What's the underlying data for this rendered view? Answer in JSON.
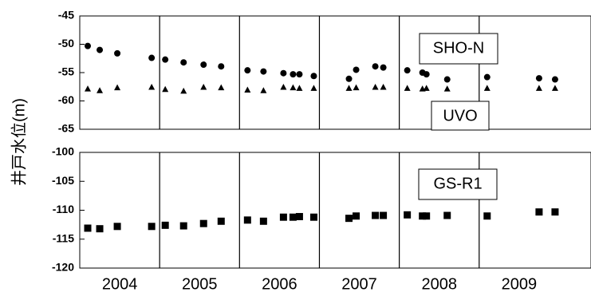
{
  "chart_data": [
    {
      "type": "scatter",
      "ylabel": "井戸水位(m)",
      "ylim": [
        -65,
        -45
      ],
      "yticks": [
        -45,
        -50,
        -55,
        -60,
        -65
      ],
      "xlim": [
        2003.5,
        2009.9
      ],
      "x_tick_labels": [
        "2004",
        "2005",
        "2006",
        "2007",
        "2008",
        "2009"
      ],
      "year_separators": [
        2004.5,
        2005.5,
        2006.5,
        2007.5,
        2008.5
      ],
      "series": [
        {
          "name": "SHO-N",
          "marker": "circle",
          "points": [
            {
              "x": 2003.6,
              "y": -50.3
            },
            {
              "x": 2003.75,
              "y": -51.0
            },
            {
              "x": 2003.97,
              "y": -51.6
            },
            {
              "x": 2004.4,
              "y": -52.4
            },
            {
              "x": 2004.57,
              "y": -52.7
            },
            {
              "x": 2004.8,
              "y": -53.2
            },
            {
              "x": 2005.05,
              "y": -53.6
            },
            {
              "x": 2005.27,
              "y": -53.9
            },
            {
              "x": 2005.6,
              "y": -54.6
            },
            {
              "x": 2005.8,
              "y": -54.8
            },
            {
              "x": 2006.05,
              "y": -55.1
            },
            {
              "x": 2006.17,
              "y": -55.3
            },
            {
              "x": 2006.25,
              "y": -55.3
            },
            {
              "x": 2006.43,
              "y": -55.6
            },
            {
              "x": 2006.87,
              "y": -56.1
            },
            {
              "x": 2006.96,
              "y": -54.5
            },
            {
              "x": 2007.2,
              "y": -53.9
            },
            {
              "x": 2007.3,
              "y": -54.1
            },
            {
              "x": 2007.6,
              "y": -54.6
            },
            {
              "x": 2007.79,
              "y": -55.0
            },
            {
              "x": 2007.84,
              "y": -55.3
            },
            {
              "x": 2008.1,
              "y": -56.2
            },
            {
              "x": 2008.6,
              "y": -55.8
            },
            {
              "x": 2009.25,
              "y": -56.0
            },
            {
              "x": 2009.45,
              "y": -56.2
            }
          ]
        },
        {
          "name": "UVO",
          "marker": "triangle",
          "points": [
            {
              "x": 2003.6,
              "y": -57.9
            },
            {
              "x": 2003.75,
              "y": -58.2
            },
            {
              "x": 2003.97,
              "y": -57.7
            },
            {
              "x": 2004.4,
              "y": -57.6
            },
            {
              "x": 2004.57,
              "y": -58.0
            },
            {
              "x": 2004.8,
              "y": -58.3
            },
            {
              "x": 2005.05,
              "y": -57.6
            },
            {
              "x": 2005.27,
              "y": -57.7
            },
            {
              "x": 2005.6,
              "y": -58.1
            },
            {
              "x": 2005.8,
              "y": -58.2
            },
            {
              "x": 2006.05,
              "y": -57.6
            },
            {
              "x": 2006.17,
              "y": -57.7
            },
            {
              "x": 2006.25,
              "y": -57.8
            },
            {
              "x": 2006.43,
              "y": -57.8
            },
            {
              "x": 2006.87,
              "y": -57.8
            },
            {
              "x": 2006.96,
              "y": -57.7
            },
            {
              "x": 2007.2,
              "y": -57.6
            },
            {
              "x": 2007.3,
              "y": -57.6
            },
            {
              "x": 2007.6,
              "y": -57.8
            },
            {
              "x": 2007.79,
              "y": -57.9
            },
            {
              "x": 2007.84,
              "y": -57.8
            },
            {
              "x": 2008.1,
              "y": -57.9
            },
            {
              "x": 2008.6,
              "y": -57.8
            },
            {
              "x": 2009.25,
              "y": -57.8
            },
            {
              "x": 2009.45,
              "y": -57.8
            }
          ]
        }
      ]
    },
    {
      "type": "scatter",
      "ylabel": "井戸水位(m)",
      "ylim": [
        -120,
        -100
      ],
      "yticks": [
        -100,
        -105,
        -110,
        -115,
        -120
      ],
      "xlim": [
        2003.5,
        2009.9
      ],
      "x_tick_labels": [
        "2004",
        "2005",
        "2006",
        "2007",
        "2008",
        "2009"
      ],
      "year_separators": [
        2004.5,
        2005.5,
        2006.5,
        2007.5,
        2008.5
      ],
      "series": [
        {
          "name": "GS-R1",
          "marker": "square",
          "points": [
            {
              "x": 2003.6,
              "y": -113.1
            },
            {
              "x": 2003.75,
              "y": -113.2
            },
            {
              "x": 2003.97,
              "y": -112.8
            },
            {
              "x": 2004.4,
              "y": -112.8
            },
            {
              "x": 2004.57,
              "y": -112.6
            },
            {
              "x": 2004.8,
              "y": -112.7
            },
            {
              "x": 2005.05,
              "y": -112.3
            },
            {
              "x": 2005.27,
              "y": -111.9
            },
            {
              "x": 2005.6,
              "y": -111.7
            },
            {
              "x": 2005.8,
              "y": -111.9
            },
            {
              "x": 2006.05,
              "y": -111.2
            },
            {
              "x": 2006.17,
              "y": -111.2
            },
            {
              "x": 2006.25,
              "y": -111.1
            },
            {
              "x": 2006.43,
              "y": -111.2
            },
            {
              "x": 2006.87,
              "y": -111.4
            },
            {
              "x": 2006.96,
              "y": -111.0
            },
            {
              "x": 2007.2,
              "y": -110.9
            },
            {
              "x": 2007.3,
              "y": -110.9
            },
            {
              "x": 2007.6,
              "y": -110.8
            },
            {
              "x": 2007.79,
              "y": -111.0
            },
            {
              "x": 2007.84,
              "y": -111.0
            },
            {
              "x": 2008.1,
              "y": -110.9
            },
            {
              "x": 2008.6,
              "y": -111.0
            },
            {
              "x": 2009.25,
              "y": -110.3
            },
            {
              "x": 2009.45,
              "y": -110.3
            }
          ]
        }
      ]
    }
  ]
}
